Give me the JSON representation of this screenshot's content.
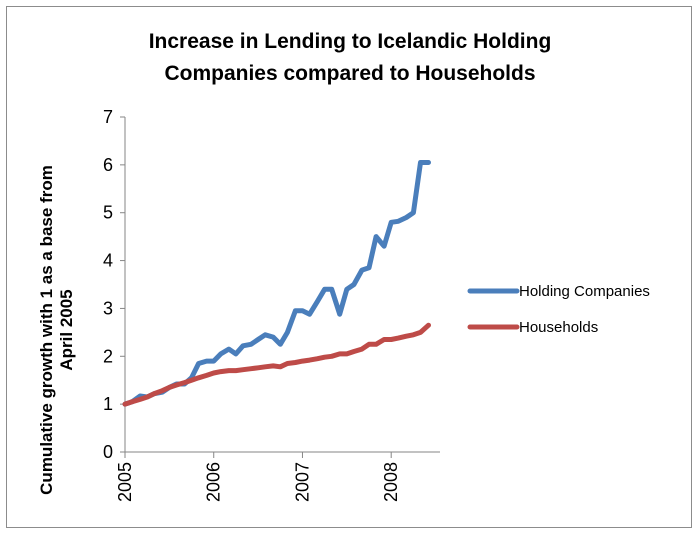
{
  "chart_data": {
    "type": "line",
    "title_lines": [
      "Increase in Lending to Icelandic Holding",
      "Companies compared to Households"
    ],
    "ylabel_lines": [
      "Cumulative growth with 1 as a base from",
      "April 2005"
    ],
    "xlabel": "",
    "ylim": [
      0,
      7
    ],
    "yticks": [
      0,
      1,
      2,
      3,
      4,
      5,
      6,
      7
    ],
    "xlim": [
      2005.0,
      2008.55
    ],
    "xticks": [
      2005,
      2006,
      2007,
      2008
    ],
    "xtick_labels": [
      "2005",
      "2006",
      "2007",
      "2008"
    ],
    "grid": false,
    "legend_position": "right",
    "series": [
      {
        "name": "Holding Companies",
        "color": "#4a7ebb",
        "x": [
          2005.0,
          2005.08,
          2005.17,
          2005.25,
          2005.33,
          2005.42,
          2005.5,
          2005.58,
          2005.67,
          2005.75,
          2005.83,
          2005.92,
          2006.0,
          2006.08,
          2006.17,
          2006.25,
          2006.33,
          2006.42,
          2006.5,
          2006.58,
          2006.67,
          2006.75,
          2006.83,
          2006.92,
          2007.0,
          2007.08,
          2007.17,
          2007.25,
          2007.33,
          2007.42,
          2007.5,
          2007.58,
          2007.67,
          2007.75,
          2007.83,
          2007.92,
          2008.0,
          2008.08,
          2008.17,
          2008.25,
          2008.33,
          2008.42
        ],
        "values": [
          1.0,
          1.05,
          1.17,
          1.15,
          1.22,
          1.25,
          1.35,
          1.42,
          1.42,
          1.55,
          1.85,
          1.9,
          1.9,
          2.05,
          2.15,
          2.05,
          2.22,
          2.25,
          2.35,
          2.45,
          2.4,
          2.25,
          2.5,
          2.95,
          2.95,
          2.88,
          3.15,
          3.4,
          3.4,
          2.88,
          3.4,
          3.5,
          3.8,
          3.85,
          4.5,
          4.3,
          4.8,
          4.82,
          4.9,
          5.0,
          6.05,
          6.05
        ],
        "legend_label": "Holding Companies"
      },
      {
        "name": "Households",
        "color": "#be4b48",
        "x": [
          2005.0,
          2005.08,
          2005.17,
          2005.25,
          2005.33,
          2005.42,
          2005.5,
          2005.58,
          2005.67,
          2005.75,
          2005.83,
          2005.92,
          2006.0,
          2006.08,
          2006.17,
          2006.25,
          2006.33,
          2006.42,
          2006.5,
          2006.58,
          2006.67,
          2006.75,
          2006.83,
          2006.92,
          2007.0,
          2007.08,
          2007.17,
          2007.25,
          2007.33,
          2007.42,
          2007.5,
          2007.58,
          2007.67,
          2007.75,
          2007.83,
          2007.92,
          2008.0,
          2008.08,
          2008.17,
          2008.25,
          2008.33,
          2008.42
        ],
        "values": [
          1.0,
          1.05,
          1.1,
          1.15,
          1.22,
          1.28,
          1.35,
          1.4,
          1.45,
          1.5,
          1.55,
          1.6,
          1.65,
          1.68,
          1.7,
          1.7,
          1.72,
          1.74,
          1.76,
          1.78,
          1.8,
          1.78,
          1.85,
          1.87,
          1.9,
          1.92,
          1.95,
          1.98,
          2.0,
          2.05,
          2.05,
          2.1,
          2.15,
          2.25,
          2.25,
          2.35,
          2.35,
          2.38,
          2.42,
          2.45,
          2.5,
          2.65
        ],
        "legend_label": "Households"
      }
    ]
  }
}
